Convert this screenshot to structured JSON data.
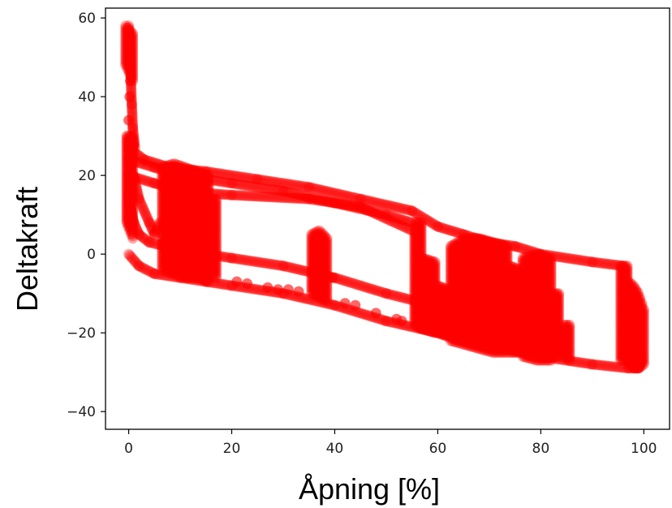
{
  "chart_data": {
    "type": "scatter",
    "title": "",
    "xlabel": "Åpning [%]",
    "ylabel": "Deltakraft",
    "xlim": [
      -4.5,
      105
    ],
    "ylim": [
      -44.5,
      62.5
    ],
    "xticks": [
      0,
      20,
      40,
      60,
      80,
      100
    ],
    "yticks": [
      -40,
      -20,
      0,
      20,
      40,
      60
    ],
    "xtick_labels": [
      "0",
      "20",
      "40",
      "60",
      "80",
      "100"
    ],
    "ytick_labels": [
      "−40",
      "−20",
      "0",
      "20",
      "40",
      "60"
    ],
    "grid": false,
    "legend": null,
    "series": [
      {
        "color": "#ff0000",
        "alpha": 0.35,
        "segments": [
          {
            "shape": "line",
            "x": [
              0,
              2,
              5,
              10,
              15,
              20,
              30,
              40,
              50,
              60,
              70,
              80,
              90,
              97,
              99,
              99.5
            ],
            "y": [
              0,
              -3,
              -5,
              -6,
              -7,
              -8,
              -10,
              -13,
              -17,
              -20,
              -23,
              -26,
              -28,
              -29,
              -29,
              -27
            ]
          },
          {
            "shape": "line",
            "x": [
              0,
              3,
              8,
              15,
              25,
              35,
              45,
              55,
              60,
              65,
              70,
              75,
              80,
              90,
              96
            ],
            "y": [
              27,
              24,
              22,
              21,
              19,
              17,
              14,
              11,
              7,
              5,
              3,
              2,
              0,
              -2,
              -3
            ]
          },
          {
            "shape": "line",
            "x": [
              0,
              5,
              10,
              20,
              30,
              40,
              50,
              55
            ],
            "y": [
              24,
              22,
              20,
              18,
              16,
              13,
              10,
              8
            ]
          },
          {
            "shape": "line",
            "x": [
              0,
              5,
              10,
              20,
              35,
              45,
              55
            ],
            "y": [
              20,
              18,
              16,
              15,
              14,
              12,
              6
            ]
          },
          {
            "shape": "line",
            "x": [
              0,
              1,
              2,
              4,
              7,
              10,
              12,
              15,
              20,
              30,
              40,
              50,
              56
            ],
            "y": [
              14,
              8,
              5,
              3,
              2,
              1,
              0.5,
              0,
              -1,
              -3,
              -6,
              -10,
              -12
            ]
          },
          {
            "shape": "line",
            "x": [
              1,
              2,
              4,
              5,
              6
            ],
            "y": [
              20,
              14,
              8,
              5,
              8
            ]
          },
          {
            "shape": "line",
            "x": [
              0,
              0.2,
              0.4,
              0.6,
              0.8,
              1.2
            ],
            "y": [
              58,
              52,
              45,
              38,
              32,
              27
            ]
          },
          {
            "shape": "line",
            "x": [
              0,
              0.3,
              0.6,
              1.0
            ],
            "y": [
              14,
              20,
              26,
              28
            ]
          },
          {
            "shape": "band",
            "x0": 6.5,
            "x1": 15.5,
            "ytop": [
              22,
              23,
              22,
              21,
              20
            ],
            "ybot": [
              -4,
              -5,
              -6,
              -6,
              -7
            ]
          },
          {
            "shape": "band",
            "x0": 16,
            "x1": 17,
            "ytop": [
              14,
              14
            ],
            "ybot": [
              -5,
              -6
            ]
          },
          {
            "shape": "band",
            "x0": 35.5,
            "x1": 38.5,
            "ytop": [
              5,
              6,
              4
            ],
            "ybot": [
              -10,
              -11,
              -12
            ]
          },
          {
            "shape": "band",
            "x0": 55.5,
            "x1": 56.8,
            "ytop": [
              8,
              8
            ],
            "ybot": [
              -18,
              -19
            ]
          },
          {
            "shape": "band",
            "x0": 57,
            "x1": 59.5,
            "ytop": [
              -1,
              -2
            ],
            "ybot": [
              -19,
              -20
            ]
          },
          {
            "shape": "band",
            "x0": 60,
            "x1": 62,
            "ytop": [
              -8,
              -9
            ],
            "ybot": [
              -20,
              -21
            ]
          },
          {
            "shape": "band",
            "x0": 62.5,
            "x1": 73.5,
            "ytop": [
              2,
              4,
              4,
              3,
              2
            ],
            "ybot": [
              -22,
              -23,
              -24,
              -25,
              -25
            ]
          },
          {
            "shape": "band",
            "x0": 74,
            "x1": 76,
            "ytop": [
              -3,
              -4
            ],
            "ybot": [
              -25,
              -25
            ]
          },
          {
            "shape": "band",
            "x0": 76.5,
            "x1": 82,
            "ytop": [
              -1,
              0,
              -1
            ],
            "ybot": [
              -26,
              -27,
              -27
            ]
          },
          {
            "shape": "band",
            "x0": 82.5,
            "x1": 83.5,
            "ytop": [
              -10,
              -10
            ],
            "ybot": [
              -26,
              -26
            ]
          },
          {
            "shape": "band",
            "x0": 84.5,
            "x1": 85.6,
            "ytop": [
              -18,
              -18
            ],
            "ybot": [
              -26,
              -27
            ]
          },
          {
            "shape": "band",
            "x0": 95.5,
            "x1": 96.8,
            "ytop": [
              -3,
              -3
            ],
            "ybot": [
              -27,
              -27
            ]
          },
          {
            "shape": "band",
            "x0": 97,
            "x1": 100,
            "ytop": [
              -7,
              -8,
              -10,
              -14
            ],
            "ybot": [
              -28,
              -29,
              -29,
              -28
            ]
          },
          {
            "shape": "band",
            "x0": -0.6,
            "x1": 0.8,
            "ytop": [
              58,
              56
            ],
            "ybot": [
              48,
              44
            ]
          },
          {
            "shape": "band",
            "x0": -0.4,
            "x1": 0.8,
            "ytop": [
              30,
              30
            ],
            "ybot": [
              8,
              4
            ]
          }
        ],
        "points": [
          [
            0,
            34
          ],
          [
            0.2,
            40
          ],
          [
            0.3,
            44
          ],
          [
            21,
            -7
          ],
          [
            23,
            -7.5
          ],
          [
            27,
            -8.5
          ],
          [
            29,
            -9
          ],
          [
            31,
            -9
          ],
          [
            33,
            -9.5
          ],
          [
            42,
            -12.5
          ],
          [
            44,
            -13
          ],
          [
            52,
            -16.5
          ],
          [
            48,
            -15
          ],
          [
            64,
            -21
          ],
          [
            66,
            -22
          ],
          [
            68,
            -23
          ],
          [
            70,
            -23.5
          ],
          [
            72,
            -24
          ],
          [
            62,
            -20
          ],
          [
            60,
            -12
          ],
          [
            39.5,
            -6
          ],
          [
            53,
            -17
          ],
          [
            63.5,
            -16
          ],
          [
            78,
            -17
          ],
          [
            80,
            -25
          ]
        ]
      }
    ]
  }
}
